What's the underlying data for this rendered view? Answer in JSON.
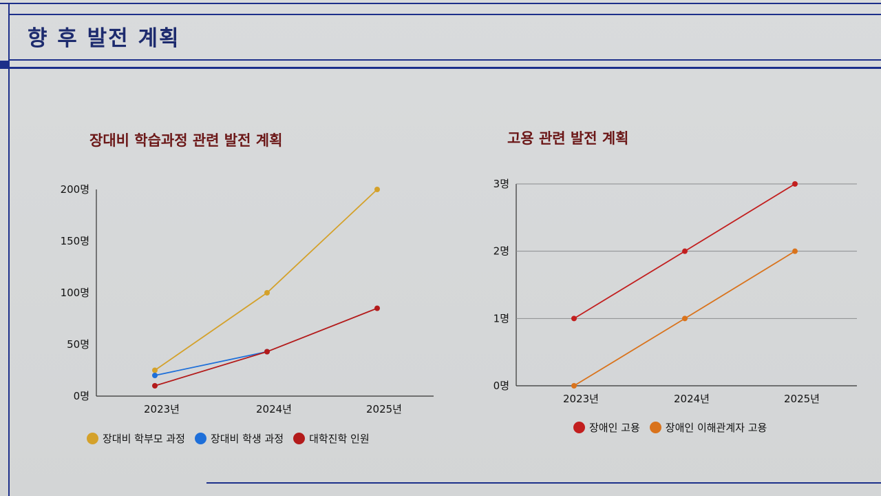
{
  "slide": {
    "title": "향 후 발전 계획"
  },
  "colors": {
    "frame": "#1c2f8a",
    "title_text": "#1d2b6e",
    "chart_title": "#6b1717"
  },
  "chart_data": [
    {
      "type": "line",
      "title": "장대비 학습과정 관련 발전 계획",
      "categories": [
        "2023년",
        "2024년",
        "2025년"
      ],
      "yticks": [
        "0명",
        "50명",
        "100명",
        "150명",
        "200명"
      ],
      "ylim": [
        0,
        200
      ],
      "grid": false,
      "legend_position": "bottom",
      "series": [
        {
          "name": "장대비 학부모 과정",
          "color": "#d4a12a",
          "values": [
            25,
            100,
            200
          ]
        },
        {
          "name": "장대비 학생 과정",
          "color": "#1e6fd9",
          "values": [
            20,
            43,
            null
          ]
        },
        {
          "name": "대학진학 인원",
          "color": "#b31b1b",
          "values": [
            10,
            43,
            85
          ]
        }
      ]
    },
    {
      "type": "line",
      "title": "고용 관련 발전 계획",
      "categories": [
        "2023년",
        "2024년",
        "2025년"
      ],
      "yticks": [
        "0명",
        "1명",
        "2명",
        "3명"
      ],
      "ylim": [
        0,
        3
      ],
      "grid": true,
      "legend_position": "bottom",
      "series": [
        {
          "name": "장애인 고용",
          "color": "#c21f1f",
          "values": [
            1,
            2,
            3
          ]
        },
        {
          "name": "장애인 이해관계자 고용",
          "color": "#d9731c",
          "values": [
            0,
            1,
            2
          ]
        }
      ]
    }
  ]
}
